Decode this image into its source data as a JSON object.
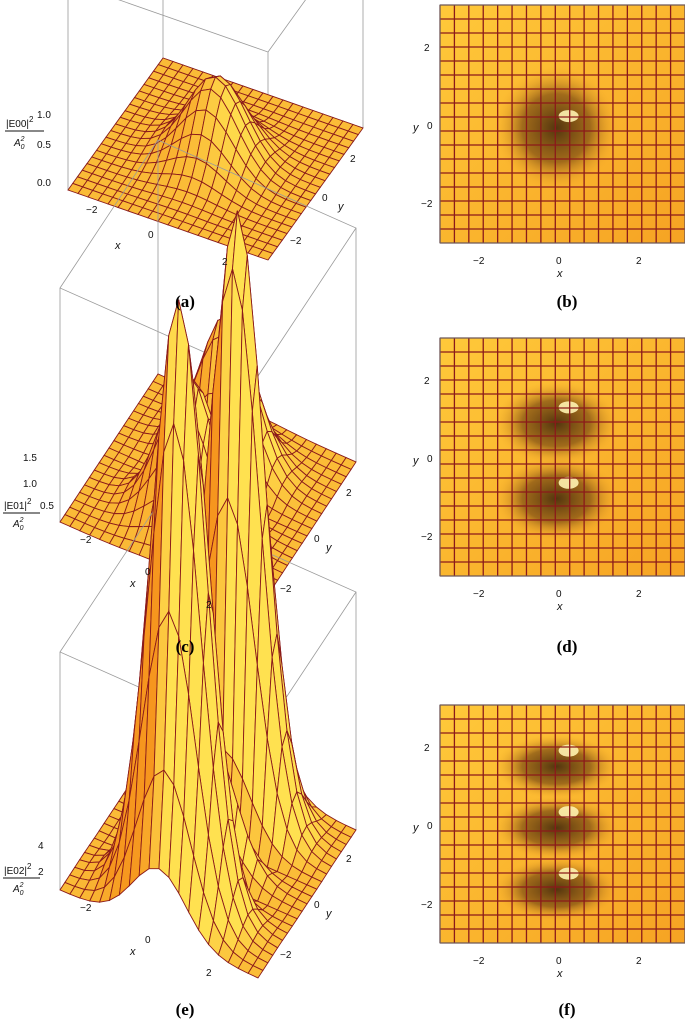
{
  "figure": {
    "panels": [
      {
        "id": "a",
        "caption": "(a)",
        "mode": 0,
        "zlabel_num": "|E00|",
        "zlabel_exp": "2",
        "zlabel_den": "A",
        "zlabel_den_sub": "0",
        "zlabel_den_sup": "2",
        "z_ticks": [
          "1.0",
          "0.5",
          "0.0"
        ],
        "x_ticks": [
          "−2",
          "0",
          "2"
        ],
        "y_ticks": [
          "2",
          "0",
          "−2"
        ],
        "x_label": "x",
        "y_label": "y"
      },
      {
        "id": "b",
        "caption": "(b)",
        "mode": 0,
        "x_ticks": [
          "−2",
          "0",
          "2"
        ],
        "y_ticks": [
          "2",
          "0",
          "−2"
        ],
        "x_label": "x",
        "y_label": "y"
      },
      {
        "id": "c",
        "caption": "(c)",
        "mode": 1,
        "zlabel_num": "|E01|",
        "zlabel_exp": "2",
        "zlabel_den": "A",
        "zlabel_den_sub": "0",
        "zlabel_den_sup": "2",
        "z_ticks": [
          "1.5",
          "1.0",
          "0.5"
        ],
        "x_ticks": [
          "−2",
          "0",
          "2"
        ],
        "y_ticks": [
          "2",
          "0",
          "−2"
        ],
        "x_label": "x",
        "y_label": "y"
      },
      {
        "id": "d",
        "caption": "(d)",
        "mode": 1,
        "x_ticks": [
          "−2",
          "0",
          "2"
        ],
        "y_ticks": [
          "2",
          "0",
          "−2"
        ],
        "x_label": "x",
        "y_label": "y"
      },
      {
        "id": "e",
        "caption": "(e)",
        "mode": 2,
        "zlabel_num": "|E02|",
        "zlabel_exp": "2",
        "zlabel_den": "A",
        "zlabel_den_sub": "0",
        "zlabel_den_sup": "2",
        "z_ticks": [
          "4",
          "2"
        ],
        "x_ticks": [
          "−2",
          "0",
          "2"
        ],
        "y_ticks": [
          "2",
          "0",
          "−2"
        ],
        "x_label": "x",
        "y_label": "y"
      },
      {
        "id": "f",
        "caption": "(f)",
        "mode": 2,
        "x_ticks": [
          "−2",
          "0",
          "2"
        ],
        "y_ticks": [
          "2",
          "0",
          "−2"
        ],
        "x_label": "x",
        "y_label": "y"
      }
    ],
    "colors": {
      "surface_light": "#ffd95a",
      "surface_mid": "#f4a82a",
      "surface_dark": "#5a3a10",
      "mesh": "#8b1a1a",
      "box": "#9a9a9a"
    }
  }
}
